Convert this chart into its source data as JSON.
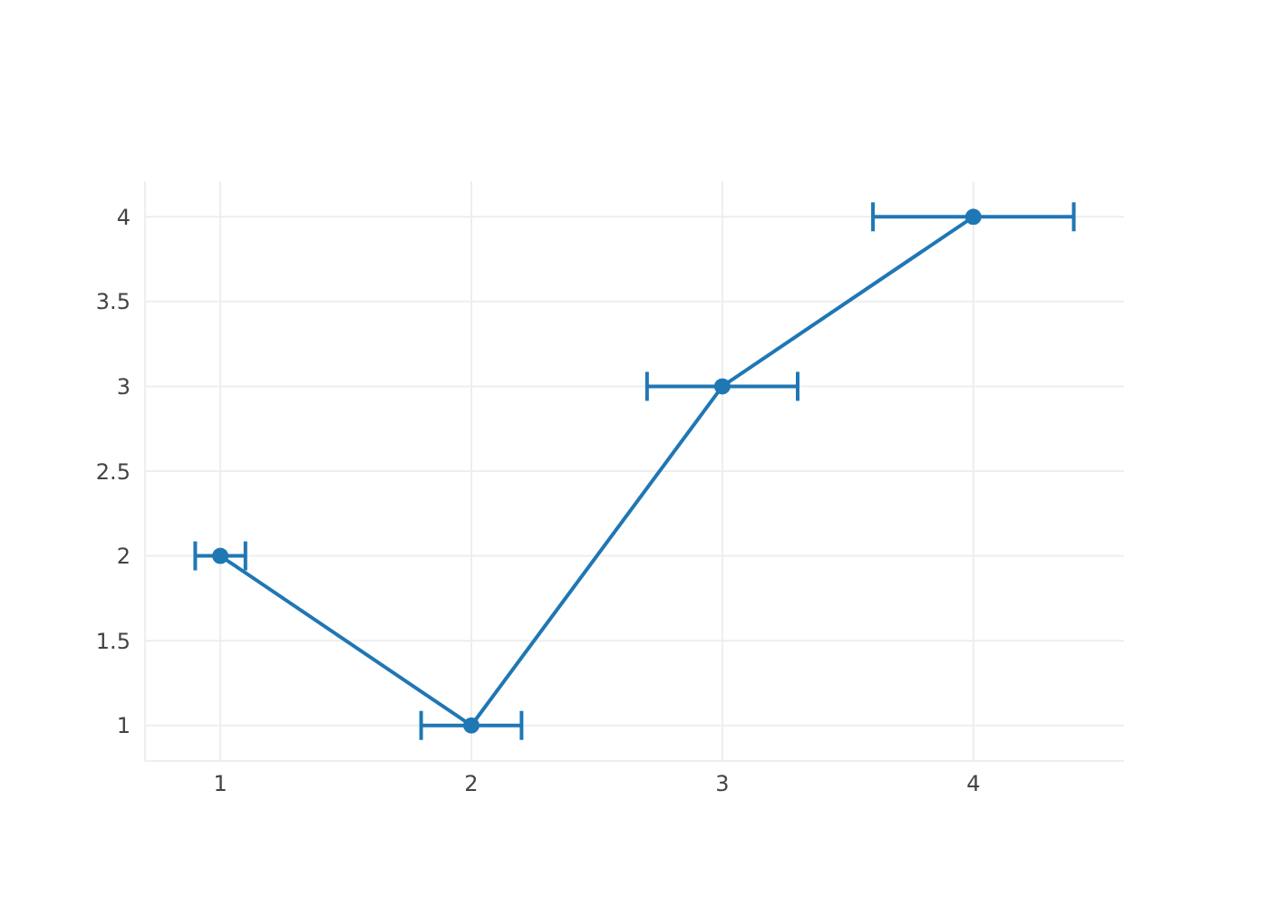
{
  "chart_data": {
    "type": "line",
    "x": [
      1,
      2,
      3,
      4
    ],
    "series": [
      {
        "color": "#1f77b4",
        "values": [
          2,
          1,
          3,
          4
        ],
        "xerrors": [
          0.1,
          0.2,
          0.3,
          0.4
        ]
      }
    ],
    "xlim": [
      0.7,
      4.6
    ],
    "ylim": [
      0.79,
      4.21
    ],
    "xticks": [
      1,
      2,
      3,
      4
    ],
    "yticks": [
      1,
      1.5,
      2,
      2.5,
      3,
      3.5,
      4
    ],
    "grid": true,
    "marker": "circle",
    "line_style": "solid",
    "legend": false
  }
}
